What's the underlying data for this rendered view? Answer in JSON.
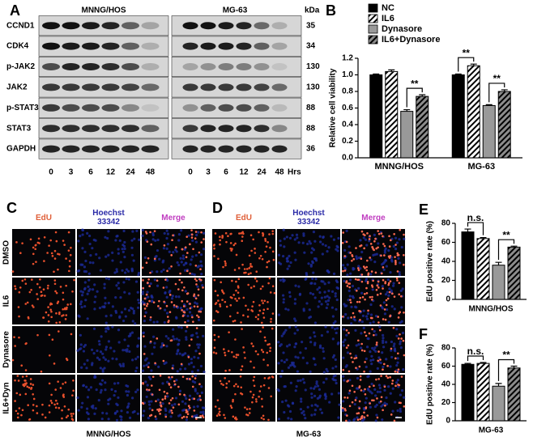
{
  "panel_labels": [
    "A",
    "B",
    "C",
    "D",
    "E",
    "F"
  ],
  "blot": {
    "cell_lines": [
      "MNNG/HOS",
      "MG-63"
    ],
    "unit": "kDa",
    "proteins": [
      "CCND1",
      "CDK4",
      "p-JAK2",
      "JAK2",
      "p-STAT3",
      "STAT3",
      "GAPDH"
    ],
    "sizes": [
      "35",
      "34",
      "130",
      "130",
      "88",
      "88",
      "36"
    ],
    "lanes": [
      "0",
      "3",
      "6",
      "12",
      "24",
      "48"
    ],
    "time_unit": "Hrs"
  },
  "imaging": {
    "headers": [
      "EdU",
      "Hoechst 33342",
      "Merge"
    ],
    "rows": [
      "DMSO",
      "IL6",
      "Dynasore",
      "IL6+Dyn"
    ],
    "cell_lines": [
      "MNNG/HOS",
      "MG-63"
    ]
  },
  "chart_data": [
    {
      "type": "bar",
      "ylabel": "Relative cell viability",
      "categories": [
        "MNNG/HOS",
        "MG-63"
      ],
      "series": [
        {
          "name": "NC",
          "color": "#000000",
          "hatch": false,
          "values": [
            1.0,
            1.0
          ],
          "errors": [
            0.01,
            0.01
          ]
        },
        {
          "name": "IL6",
          "color": "#ffffff",
          "hatch": true,
          "values": [
            1.04,
            1.11
          ],
          "errors": [
            0.02,
            0.02
          ]
        },
        {
          "name": "Dynasore",
          "color": "#999999",
          "hatch": false,
          "values": [
            0.56,
            0.63
          ],
          "errors": [
            0.02,
            0.01
          ]
        },
        {
          "name": "IL6+Dynasore",
          "color": "#8c8c8c",
          "hatch": true,
          "values": [
            0.74,
            0.8
          ],
          "errors": [
            0.02,
            0.02
          ]
        }
      ],
      "ylim": [
        0,
        1.2
      ],
      "yticks": [
        {
          "value": 0,
          "label": "0.0"
        },
        0.2,
        0.4,
        0.6,
        0.8,
        {
          "value": 1,
          "label": "1.0"
        },
        1.2
      ],
      "annotations": [
        "**",
        "**",
        "**"
      ],
      "legend": "top-right"
    },
    {
      "type": "bar",
      "ylabel": "EdU positive rate (%)",
      "xlabel": "MNNG/HOS",
      "values": [
        71,
        64,
        36,
        55
      ],
      "errors": [
        3,
        1,
        3,
        1
      ],
      "colors": [
        "#000000",
        "#ffffff",
        "#999999",
        "#8c8c8c"
      ],
      "hatch": [
        false,
        true,
        false,
        true
      ],
      "ylim": [
        0,
        80
      ],
      "yticks": [
        0,
        20,
        40,
        60,
        80
      ],
      "annotations": [
        "n.s.",
        "**"
      ]
    },
    {
      "type": "bar",
      "ylabel": "EdU positive rate (%)",
      "xlabel": "MG-63",
      "values": [
        62,
        63,
        38,
        58
      ],
      "errors": [
        1,
        1,
        3,
        2
      ],
      "colors": [
        "#000000",
        "#ffffff",
        "#999999",
        "#8c8c8c"
      ],
      "hatch": [
        false,
        true,
        false,
        true
      ],
      "ylim": [
        0,
        80
      ],
      "yticks": [
        0,
        20,
        40,
        60,
        80
      ],
      "annotations": [
        "n.s.",
        "**"
      ]
    }
  ]
}
